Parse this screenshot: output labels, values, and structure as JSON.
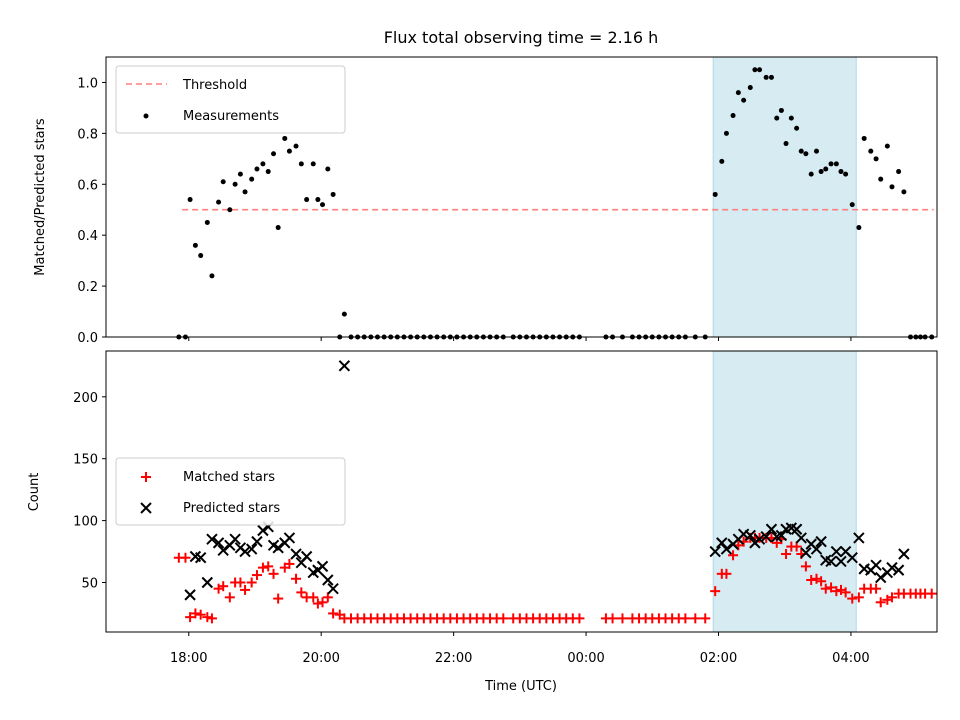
{
  "chart_data": {
    "type": "scatter",
    "title": "Flux total observing time = 2.16 h",
    "xlabel": "Time (UTC)",
    "x_ticks": [
      "18:00",
      "20:00",
      "22:00",
      "00:00",
      "02:00",
      "04:00"
    ],
    "xlim_hours": [
      16.75,
      29.3
    ],
    "highlight_hours": [
      25.92,
      28.08
    ],
    "colors": {
      "threshold": "#ff7f7f",
      "matched": "#ff0000",
      "predicted": "#000000",
      "measurement": "#000000",
      "highlight": "#add8e6"
    },
    "top": {
      "ylabel": "Matched/Predicted stars",
      "ylim": [
        0,
        1.1
      ],
      "y_ticks": [
        "0.0",
        "0.2",
        "0.4",
        "0.6",
        "0.8",
        "1.0"
      ],
      "legend": [
        "Threshold",
        "Measurements"
      ],
      "threshold": {
        "value": 0.5,
        "x_start": 17.9,
        "x_end": 29.25
      },
      "measurements": [
        [
          17.85,
          0
        ],
        [
          17.95,
          0
        ],
        [
          18.02,
          0.54
        ],
        [
          18.1,
          0.36
        ],
        [
          18.18,
          0.32
        ],
        [
          18.28,
          0.45
        ],
        [
          18.35,
          0.24
        ],
        [
          18.45,
          0.53
        ],
        [
          18.52,
          0.61
        ],
        [
          18.62,
          0.5
        ],
        [
          18.7,
          0.6
        ],
        [
          18.78,
          0.64
        ],
        [
          18.85,
          0.57
        ],
        [
          18.95,
          0.62
        ],
        [
          19.03,
          0.66
        ],
        [
          19.12,
          0.68
        ],
        [
          19.2,
          0.65
        ],
        [
          19.28,
          0.72
        ],
        [
          19.35,
          0.43
        ],
        [
          19.45,
          0.78
        ],
        [
          19.52,
          0.73
        ],
        [
          19.62,
          0.75
        ],
        [
          19.7,
          0.68
        ],
        [
          19.78,
          0.54
        ],
        [
          19.88,
          0.68
        ],
        [
          19.95,
          0.54
        ],
        [
          20.02,
          0.52
        ],
        [
          20.1,
          0.66
        ],
        [
          20.18,
          0.56
        ],
        [
          20.28,
          0
        ],
        [
          20.35,
          0.09
        ],
        [
          20.45,
          0
        ],
        [
          20.55,
          0
        ],
        [
          20.65,
          0
        ],
        [
          20.75,
          0
        ],
        [
          20.85,
          0
        ],
        [
          20.95,
          0
        ],
        [
          21.05,
          0
        ],
        [
          21.15,
          0
        ],
        [
          21.25,
          0
        ],
        [
          21.35,
          0
        ],
        [
          21.45,
          0
        ],
        [
          21.55,
          0
        ],
        [
          21.65,
          0
        ],
        [
          21.75,
          0
        ],
        [
          21.85,
          0
        ],
        [
          21.95,
          0
        ],
        [
          22.05,
          0
        ],
        [
          22.15,
          0
        ],
        [
          22.25,
          0
        ],
        [
          22.35,
          0
        ],
        [
          22.45,
          0
        ],
        [
          22.55,
          0
        ],
        [
          22.65,
          0
        ],
        [
          22.75,
          0
        ],
        [
          22.9,
          0
        ],
        [
          23.0,
          0
        ],
        [
          23.1,
          0
        ],
        [
          23.2,
          0
        ],
        [
          23.3,
          0
        ],
        [
          23.4,
          0
        ],
        [
          23.5,
          0
        ],
        [
          23.6,
          0
        ],
        [
          23.7,
          0
        ],
        [
          23.8,
          0
        ],
        [
          23.9,
          0
        ],
        [
          24.3,
          0
        ],
        [
          24.4,
          0
        ],
        [
          24.55,
          0
        ],
        [
          24.7,
          0
        ],
        [
          24.8,
          0
        ],
        [
          24.9,
          0
        ],
        [
          25.0,
          0
        ],
        [
          25.1,
          0
        ],
        [
          25.2,
          0
        ],
        [
          25.3,
          0
        ],
        [
          25.4,
          0
        ],
        [
          25.5,
          0
        ],
        [
          25.65,
          0
        ],
        [
          25.8,
          0
        ],
        [
          25.95,
          0.56
        ],
        [
          26.05,
          0.69
        ],
        [
          26.12,
          0.8
        ],
        [
          26.22,
          0.87
        ],
        [
          26.3,
          0.96
        ],
        [
          26.38,
          0.93
        ],
        [
          26.48,
          0.98
        ],
        [
          26.55,
          1.05
        ],
        [
          26.62,
          1.05
        ],
        [
          26.72,
          1.02
        ],
        [
          26.8,
          1.02
        ],
        [
          26.88,
          0.86
        ],
        [
          26.95,
          0.89
        ],
        [
          27.02,
          0.76
        ],
        [
          27.1,
          0.86
        ],
        [
          27.18,
          0.82
        ],
        [
          27.25,
          0.73
        ],
        [
          27.32,
          0.72
        ],
        [
          27.4,
          0.64
        ],
        [
          27.48,
          0.73
        ],
        [
          27.55,
          0.65
        ],
        [
          27.62,
          0.66
        ],
        [
          27.7,
          0.68
        ],
        [
          27.78,
          0.68
        ],
        [
          27.85,
          0.65
        ],
        [
          27.92,
          0.64
        ],
        [
          28.02,
          0.52
        ],
        [
          28.12,
          0.43
        ],
        [
          28.2,
          0.78
        ],
        [
          28.3,
          0.73
        ],
        [
          28.38,
          0.7
        ],
        [
          28.45,
          0.62
        ],
        [
          28.55,
          0.75
        ],
        [
          28.62,
          0.59
        ],
        [
          28.72,
          0.65
        ],
        [
          28.8,
          0.57
        ],
        [
          28.9,
          0
        ],
        [
          28.98,
          0
        ],
        [
          29.05,
          0
        ],
        [
          29.12,
          0
        ],
        [
          29.22,
          0
        ]
      ]
    },
    "bottom": {
      "ylabel": "Count",
      "ylim": [
        10,
        237
      ],
      "y_ticks": [
        "50",
        "100",
        "150",
        "200"
      ],
      "legend": [
        "Matched stars",
        "Predicted stars"
      ],
      "matched": [
        [
          17.85,
          70
        ],
        [
          17.95,
          70
        ],
        [
          18.02,
          22
        ],
        [
          18.1,
          25
        ],
        [
          18.18,
          24
        ],
        [
          18.28,
          22
        ],
        [
          18.35,
          21
        ],
        [
          18.45,
          45
        ],
        [
          18.52,
          47
        ],
        [
          18.62,
          38
        ],
        [
          18.7,
          50
        ],
        [
          18.78,
          50
        ],
        [
          18.85,
          44
        ],
        [
          18.95,
          50
        ],
        [
          19.03,
          56
        ],
        [
          19.12,
          62
        ],
        [
          19.2,
          63
        ],
        [
          19.28,
          57
        ],
        [
          19.35,
          37
        ],
        [
          19.45,
          62
        ],
        [
          19.52,
          65
        ],
        [
          19.62,
          53
        ],
        [
          19.7,
          42
        ],
        [
          19.78,
          38
        ],
        [
          19.88,
          38
        ],
        [
          19.95,
          33
        ],
        [
          20.02,
          34
        ],
        [
          20.1,
          38
        ],
        [
          20.18,
          25
        ],
        [
          20.28,
          24
        ],
        [
          20.35,
          21
        ],
        [
          20.45,
          21
        ],
        [
          20.55,
          21
        ],
        [
          20.65,
          21
        ],
        [
          20.75,
          21
        ],
        [
          20.85,
          21
        ],
        [
          20.95,
          21
        ],
        [
          21.05,
          21
        ],
        [
          21.15,
          21
        ],
        [
          21.25,
          21
        ],
        [
          21.35,
          21
        ],
        [
          21.45,
          21
        ],
        [
          21.55,
          21
        ],
        [
          21.65,
          21
        ],
        [
          21.75,
          21
        ],
        [
          21.85,
          21
        ],
        [
          21.95,
          21
        ],
        [
          22.05,
          21
        ],
        [
          22.15,
          21
        ],
        [
          22.25,
          21
        ],
        [
          22.35,
          21
        ],
        [
          22.45,
          21
        ],
        [
          22.55,
          21
        ],
        [
          22.65,
          21
        ],
        [
          22.75,
          21
        ],
        [
          22.9,
          21
        ],
        [
          23.0,
          21
        ],
        [
          23.1,
          21
        ],
        [
          23.2,
          21
        ],
        [
          23.3,
          21
        ],
        [
          23.4,
          21
        ],
        [
          23.5,
          21
        ],
        [
          23.6,
          21
        ],
        [
          23.7,
          21
        ],
        [
          23.8,
          21
        ],
        [
          23.9,
          21
        ],
        [
          24.3,
          21
        ],
        [
          24.4,
          21
        ],
        [
          24.55,
          21
        ],
        [
          24.7,
          21
        ],
        [
          24.8,
          21
        ],
        [
          24.9,
          21
        ],
        [
          25.0,
          21
        ],
        [
          25.1,
          21
        ],
        [
          25.2,
          21
        ],
        [
          25.3,
          21
        ],
        [
          25.4,
          21
        ],
        [
          25.5,
          21
        ],
        [
          25.65,
          21
        ],
        [
          25.8,
          21
        ],
        [
          25.95,
          43
        ],
        [
          26.05,
          57
        ],
        [
          26.12,
          57
        ],
        [
          26.22,
          72
        ],
        [
          26.3,
          80
        ],
        [
          26.38,
          83
        ],
        [
          26.48,
          86
        ],
        [
          26.55,
          86
        ],
        [
          26.62,
          86
        ],
        [
          26.72,
          86
        ],
        [
          26.8,
          86
        ],
        [
          26.88,
          82
        ],
        [
          26.95,
          85
        ],
        [
          27.02,
          73
        ],
        [
          27.1,
          79
        ],
        [
          27.18,
          79
        ],
        [
          27.25,
          73
        ],
        [
          27.32,
          63
        ],
        [
          27.4,
          52
        ],
        [
          27.48,
          53
        ],
        [
          27.55,
          51
        ],
        [
          27.62,
          45
        ],
        [
          27.7,
          46
        ],
        [
          27.78,
          43
        ],
        [
          27.85,
          44
        ],
        [
          27.92,
          42
        ],
        [
          28.02,
          37
        ],
        [
          28.12,
          38
        ],
        [
          28.2,
          45
        ],
        [
          28.3,
          45
        ],
        [
          28.38,
          45
        ],
        [
          28.45,
          34
        ],
        [
          28.55,
          36
        ],
        [
          28.62,
          38
        ],
        [
          28.72,
          41
        ],
        [
          28.8,
          41
        ],
        [
          28.9,
          41
        ],
        [
          28.98,
          41
        ],
        [
          29.05,
          41
        ],
        [
          29.12,
          41
        ],
        [
          29.22,
          41
        ]
      ],
      "predicted": [
        [
          18.02,
          40
        ],
        [
          18.1,
          71
        ],
        [
          18.18,
          70
        ],
        [
          18.28,
          50
        ],
        [
          18.35,
          85
        ],
        [
          18.45,
          82
        ],
        [
          18.52,
          76
        ],
        [
          18.62,
          80
        ],
        [
          18.7,
          85
        ],
        [
          18.78,
          78
        ],
        [
          18.85,
          75
        ],
        [
          18.95,
          77
        ],
        [
          19.03,
          83
        ],
        [
          19.12,
          92
        ],
        [
          19.2,
          95
        ],
        [
          19.28,
          80
        ],
        [
          19.35,
          78
        ],
        [
          19.45,
          82
        ],
        [
          19.52,
          86
        ],
        [
          19.62,
          73
        ],
        [
          19.7,
          66
        ],
        [
          19.78,
          71
        ],
        [
          19.88,
          58
        ],
        [
          19.95,
          60
        ],
        [
          20.02,
          63
        ],
        [
          20.1,
          52
        ],
        [
          20.18,
          45
        ],
        [
          20.35,
          225
        ],
        [
          25.95,
          75
        ],
        [
          26.05,
          82
        ],
        [
          26.12,
          77
        ],
        [
          26.22,
          81
        ],
        [
          26.3,
          85
        ],
        [
          26.38,
          89
        ],
        [
          26.48,
          88
        ],
        [
          26.55,
          82
        ],
        [
          26.62,
          85
        ],
        [
          26.72,
          87
        ],
        [
          26.8,
          93
        ],
        [
          26.88,
          87
        ],
        [
          26.95,
          88
        ],
        [
          27.02,
          93
        ],
        [
          27.1,
          94
        ],
        [
          27.18,
          93
        ],
        [
          27.25,
          86
        ],
        [
          27.32,
          74
        ],
        [
          27.4,
          81
        ],
        [
          27.48,
          77
        ],
        [
          27.55,
          83
        ],
        [
          27.62,
          68
        ],
        [
          27.7,
          67
        ],
        [
          27.78,
          75
        ],
        [
          27.85,
          67
        ],
        [
          27.92,
          75
        ],
        [
          28.02,
          70
        ],
        [
          28.12,
          86
        ],
        [
          28.2,
          61
        ],
        [
          28.3,
          60
        ],
        [
          28.38,
          64
        ],
        [
          28.45,
          54
        ],
        [
          28.55,
          58
        ],
        [
          28.62,
          62
        ],
        [
          28.72,
          60
        ],
        [
          28.8,
          73
        ]
      ]
    }
  }
}
